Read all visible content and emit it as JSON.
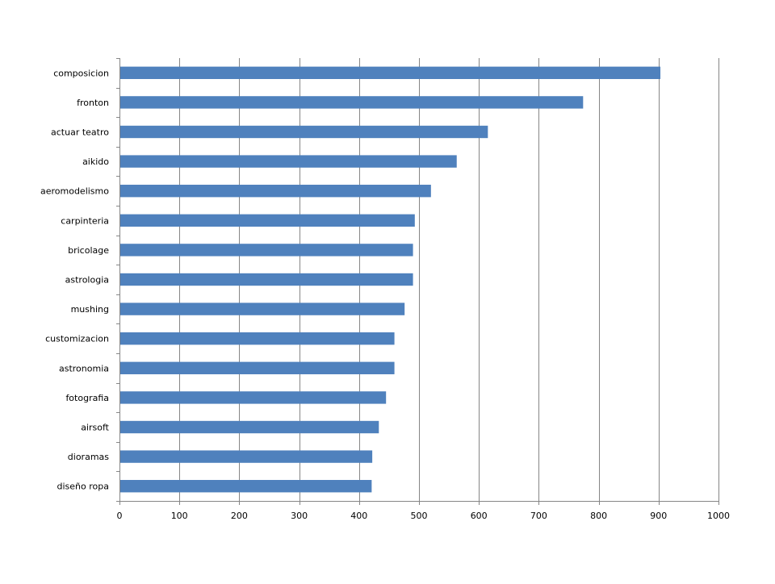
{
  "chart_data": {
    "type": "bar",
    "orientation": "horizontal",
    "title": "",
    "xlabel": "",
    "ylabel": "",
    "categories": [
      "composicion",
      "fronton",
      "actuar teatro",
      "aikido",
      "aeromodelismo",
      "carpinteria",
      "bricolage",
      "astrologia",
      "mushing",
      "customizacion",
      "astronomia",
      "fotografia",
      "airsoft",
      "dioramas",
      "diseño ropa"
    ],
    "values": [
      903,
      774,
      615,
      563,
      520,
      493,
      490,
      490,
      476,
      459,
      459,
      445,
      433,
      422,
      421
    ],
    "xlim": [
      0,
      1000
    ],
    "xticks": [
      0,
      100,
      200,
      300,
      400,
      500,
      600,
      700,
      800,
      900,
      1000
    ],
    "grid": "vertical",
    "legend": "none",
    "colors": {
      "bar": "#4F81BD",
      "grid": "#868686",
      "axis": "#868686"
    }
  }
}
